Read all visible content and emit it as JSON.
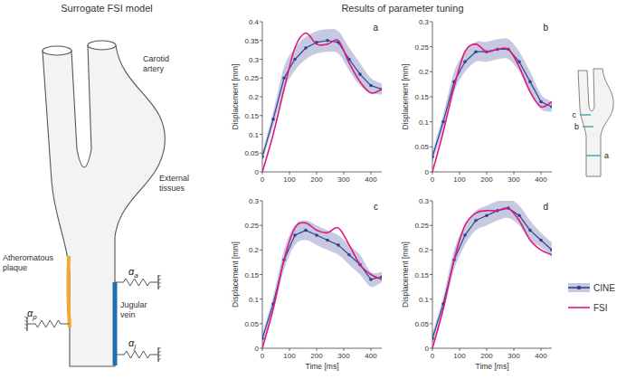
{
  "figure": {
    "left_title": "Surrogate FSI model",
    "right_title": "Results of parameter tuning"
  },
  "diagram": {
    "labels": {
      "carotid": "Carotid artery",
      "external": "External tissues",
      "plaque": "Atheromatous plaque",
      "jugular": "Jugular vein"
    },
    "springs": [
      {
        "base": "α",
        "sub": "p"
      },
      {
        "base": "α",
        "sub": "a"
      },
      {
        "base": "α",
        "sub": "j"
      }
    ],
    "schematic_labels": [
      "a",
      "b",
      "c"
    ]
  },
  "chart_data": [
    {
      "type": "line",
      "panel": "a",
      "ylabel": "Displacement [mm]",
      "x": [
        0,
        40,
        80,
        120,
        160,
        200,
        240,
        280,
        320,
        360,
        400,
        440
      ],
      "xlim": [
        0,
        440
      ],
      "xticks": [
        0,
        100,
        200,
        300,
        400
      ],
      "ylim": [
        0,
        0.4
      ],
      "yticks": [
        0,
        0.05,
        0.1,
        0.15,
        0.2,
        0.25,
        0.3,
        0.35,
        0.4
      ],
      "series": [
        {
          "name": "CINE",
          "color": "#33418f",
          "marker": "circle",
          "values": [
            0.04,
            0.14,
            0.25,
            0.3,
            0.33,
            0.345,
            0.35,
            0.345,
            0.3,
            0.26,
            0.23,
            0.22
          ],
          "errors": [
            0.01,
            0.02,
            0.03,
            0.03,
            0.03,
            0.03,
            0.03,
            0.03,
            0.03,
            0.03,
            0.02,
            0.015
          ]
        },
        {
          "name": "FSI",
          "color": "#e0187f",
          "values": [
            0,
            0.1,
            0.22,
            0.33,
            0.37,
            0.34,
            0.34,
            0.35,
            0.29,
            0.24,
            0.21,
            0.22
          ]
        }
      ]
    },
    {
      "type": "line",
      "panel": "b",
      "ylabel": "Displacement [mm]",
      "x": [
        0,
        40,
        80,
        120,
        160,
        200,
        240,
        280,
        320,
        360,
        400,
        440
      ],
      "xlim": [
        0,
        440
      ],
      "xticks": [
        0,
        100,
        200,
        300,
        400
      ],
      "ylim": [
        0,
        0.3
      ],
      "yticks": [
        0,
        0.05,
        0.1,
        0.15,
        0.2,
        0.25,
        0.3
      ],
      "series": [
        {
          "name": "CINE",
          "color": "#33418f",
          "marker": "circle",
          "values": [
            0.03,
            0.1,
            0.18,
            0.22,
            0.24,
            0.24,
            0.245,
            0.245,
            0.22,
            0.18,
            0.14,
            0.13
          ],
          "errors": [
            0.01,
            0.015,
            0.02,
            0.02,
            0.02,
            0.02,
            0.02,
            0.02,
            0.02,
            0.02,
            0.015,
            0.01
          ]
        },
        {
          "name": "FSI",
          "color": "#e0187f",
          "values": [
            0,
            0.08,
            0.17,
            0.24,
            0.255,
            0.24,
            0.245,
            0.245,
            0.21,
            0.16,
            0.13,
            0.14
          ]
        }
      ]
    },
    {
      "type": "line",
      "panel": "c",
      "ylabel": "Displacement [mm]",
      "xlabel": "Time [ms]",
      "x": [
        0,
        40,
        80,
        120,
        160,
        200,
        240,
        280,
        320,
        360,
        400,
        440
      ],
      "xlim": [
        0,
        440
      ],
      "xticks": [
        0,
        100,
        200,
        300,
        400
      ],
      "ylim": [
        0,
        0.3
      ],
      "yticks": [
        0,
        0.05,
        0.1,
        0.15,
        0.2,
        0.25,
        0.3
      ],
      "series": [
        {
          "name": "CINE",
          "color": "#33418f",
          "marker": "circle",
          "values": [
            0.02,
            0.09,
            0.18,
            0.23,
            0.24,
            0.23,
            0.22,
            0.21,
            0.19,
            0.17,
            0.14,
            0.145
          ],
          "errors": [
            0.01,
            0.015,
            0.02,
            0.02,
            0.02,
            0.02,
            0.02,
            0.02,
            0.02,
            0.02,
            0.015,
            0.01
          ]
        },
        {
          "name": "FSI",
          "color": "#e0187f",
          "values": [
            0,
            0.08,
            0.18,
            0.245,
            0.255,
            0.24,
            0.235,
            0.245,
            0.21,
            0.17,
            0.15,
            0.14
          ]
        }
      ]
    },
    {
      "type": "line",
      "panel": "d",
      "ylabel": "Displacement [mm]",
      "xlabel": "Time [ms]",
      "legend": "right",
      "x": [
        0,
        40,
        80,
        120,
        160,
        200,
        240,
        280,
        320,
        360,
        400,
        440
      ],
      "xlim": [
        0,
        440
      ],
      "xticks": [
        0,
        100,
        200,
        300,
        400
      ],
      "ylim": [
        0,
        0.3
      ],
      "yticks": [
        0,
        0.05,
        0.1,
        0.15,
        0.2,
        0.25,
        0.3
      ],
      "series": [
        {
          "name": "CINE",
          "color": "#33418f",
          "marker": "circle",
          "values": [
            0.02,
            0.09,
            0.18,
            0.23,
            0.26,
            0.27,
            0.28,
            0.285,
            0.27,
            0.24,
            0.22,
            0.2
          ],
          "errors": [
            0.01,
            0.015,
            0.02,
            0.02,
            0.02,
            0.02,
            0.02,
            0.02,
            0.02,
            0.02,
            0.015,
            0.015
          ]
        },
        {
          "name": "FSI",
          "color": "#e0187f",
          "values": [
            0,
            0.08,
            0.18,
            0.25,
            0.275,
            0.28,
            0.28,
            0.285,
            0.26,
            0.22,
            0.2,
            0.19
          ]
        }
      ]
    }
  ]
}
